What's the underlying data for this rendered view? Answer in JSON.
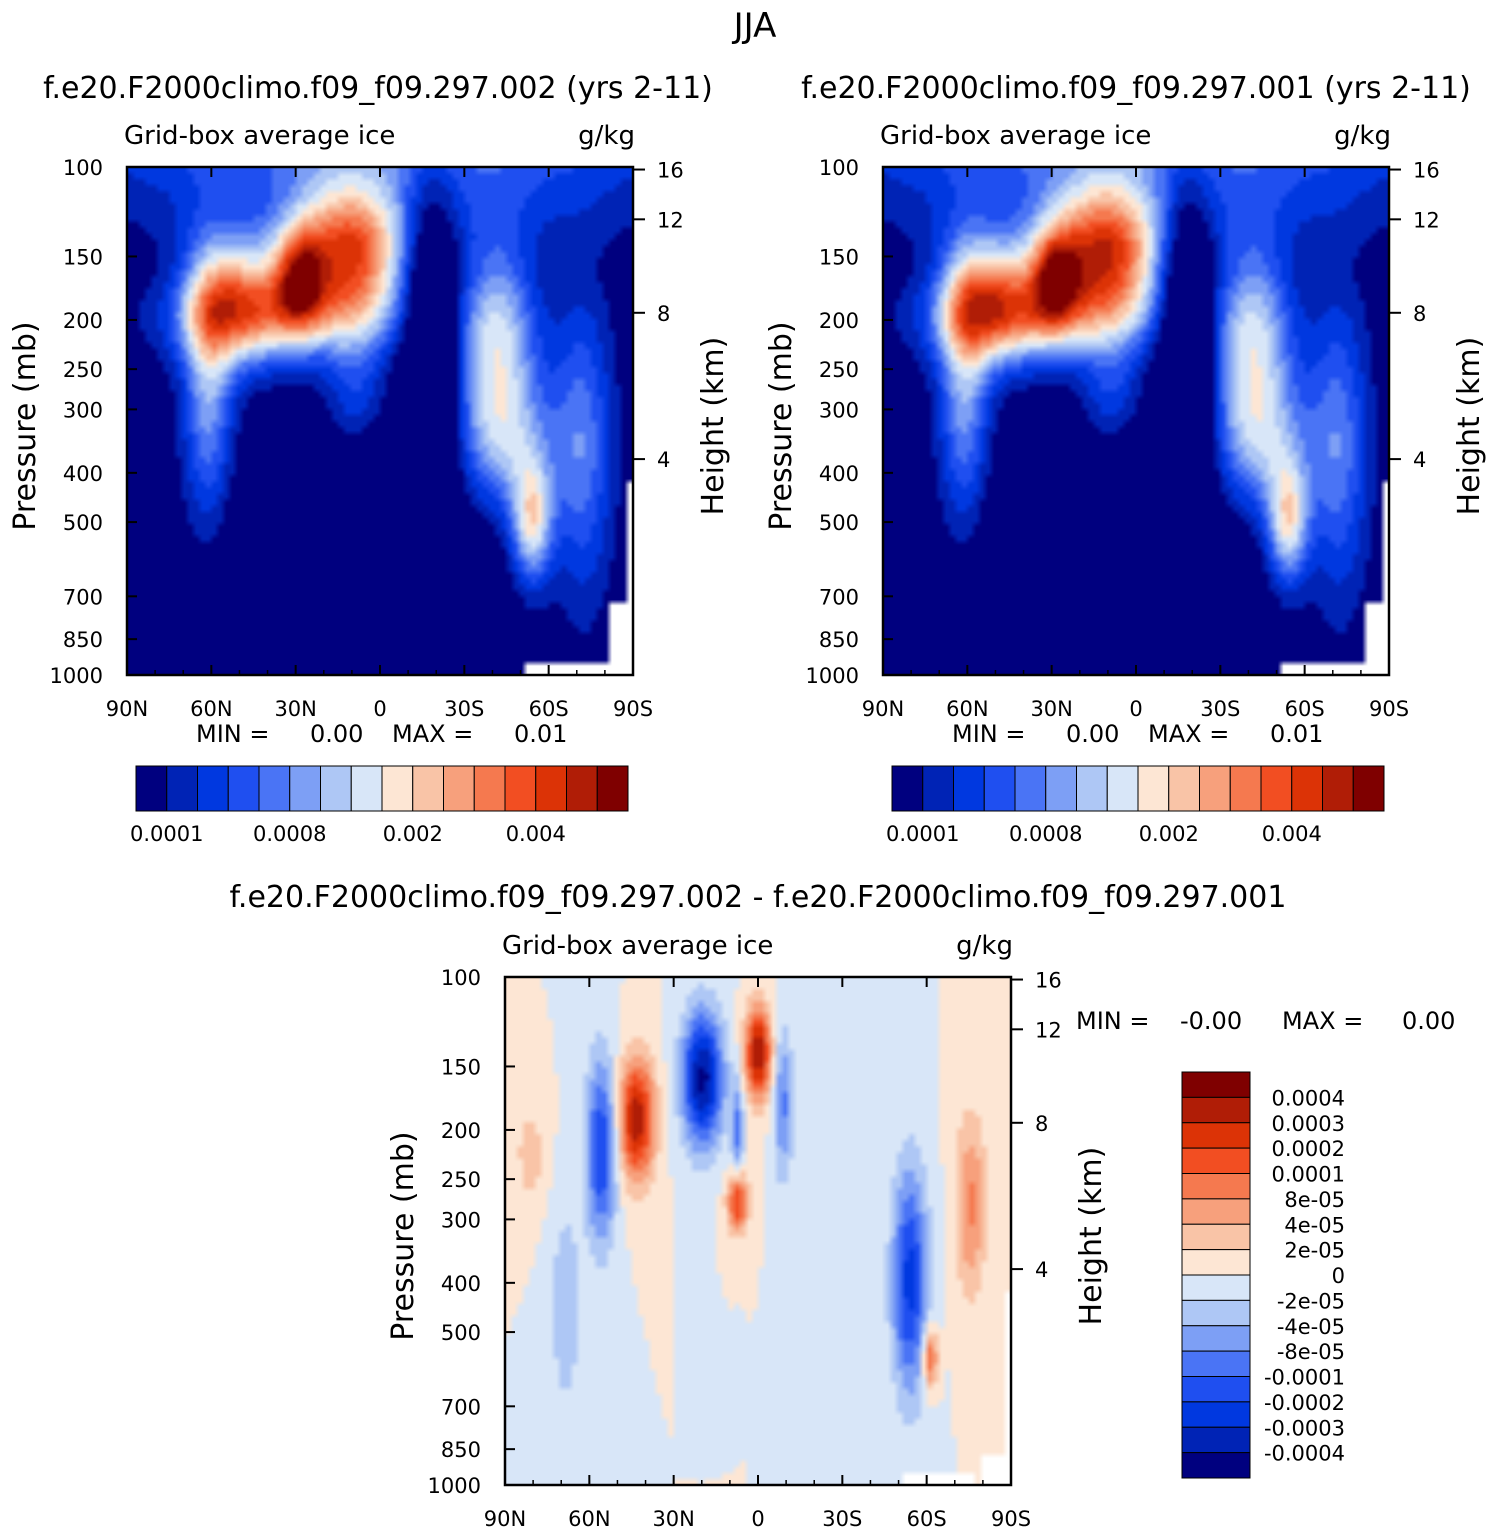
{
  "title": "JJA",
  "chart_data": [
    {
      "type": "heatmap",
      "case_title": "f.e20.F2000climo.f09_f09.297.002 (yrs 2-11)",
      "field_label": "Grid-box average ice",
      "units_label": "g/kg",
      "ylabel": "Pressure (mb)",
      "ylabel_right": "Height (km)",
      "x_ticks": [
        "90N",
        "60N",
        "30N",
        "0",
        "30S",
        "60S",
        "90S"
      ],
      "y_ticks": [
        "100",
        "150",
        "200",
        "250",
        "300",
        "400",
        "500",
        "700",
        "850",
        "1000"
      ],
      "y_right_ticks": [
        "16",
        "12",
        "8",
        "4"
      ],
      "min_text": "MIN =",
      "min_value": "0.00",
      "max_text": "MAX =",
      "max_value": "0.01",
      "colorbar_labels": [
        "0.0001",
        "0.0008",
        "0.002",
        "0.004"
      ],
      "levels": 16
    },
    {
      "type": "heatmap",
      "case_title": "f.e20.F2000climo.f09_f09.297.001 (yrs 2-11)",
      "field_label": "Grid-box average ice",
      "units_label": "g/kg",
      "ylabel": "Pressure (mb)",
      "ylabel_right": "Height (km)",
      "x_ticks": [
        "90N",
        "60N",
        "30N",
        "0",
        "30S",
        "60S",
        "90S"
      ],
      "y_ticks": [
        "100",
        "150",
        "200",
        "250",
        "300",
        "400",
        "500",
        "700",
        "850",
        "1000"
      ],
      "y_right_ticks": [
        "16",
        "12",
        "8",
        "4"
      ],
      "min_text": "MIN =",
      "min_value": "0.00",
      "max_text": "MAX =",
      "max_value": "0.01",
      "colorbar_labels": [
        "0.0001",
        "0.0008",
        "0.002",
        "0.004"
      ],
      "levels": 16
    },
    {
      "type": "heatmap",
      "case_title": "f.e20.F2000climo.f09_f09.297.002 - f.e20.F2000climo.f09_f09.297.001",
      "field_label": "Grid-box average ice",
      "units_label": "g/kg",
      "ylabel": "Pressure (mb)",
      "ylabel_right": "Height (km)",
      "x_ticks": [
        "90N",
        "60N",
        "30N",
        "0",
        "30S",
        "60S",
        "90S"
      ],
      "y_ticks": [
        "100",
        "150",
        "200",
        "250",
        "300",
        "400",
        "500",
        "700",
        "850",
        "1000"
      ],
      "y_right_ticks": [
        "16",
        "12",
        "8",
        "4"
      ],
      "min_text": "MIN =",
      "min_value": "-0.00",
      "max_text": "MAX =",
      "max_value": "0.00",
      "colorbar_labels": [
        "0.0004",
        "0.0003",
        "0.0002",
        "0.0001",
        "8e-05",
        "4e-05",
        "2e-05",
        "0",
        "-2e-05",
        "-4e-05",
        "-8e-05",
        "-0.0001",
        "-0.0002",
        "-0.0003",
        "-0.0004"
      ],
      "levels": 16
    }
  ],
  "palette": [
    "#00007f",
    "#0023b5",
    "#0038e0",
    "#1f4ff0",
    "#4a74f5",
    "#7d9ff5",
    "#aec7f5",
    "#d8e6f8",
    "#fde6d4",
    "#f9c4a7",
    "#f7a07c",
    "#f5794f",
    "#f24e22",
    "#dc3306",
    "#b01d06",
    "#7f0000"
  ]
}
